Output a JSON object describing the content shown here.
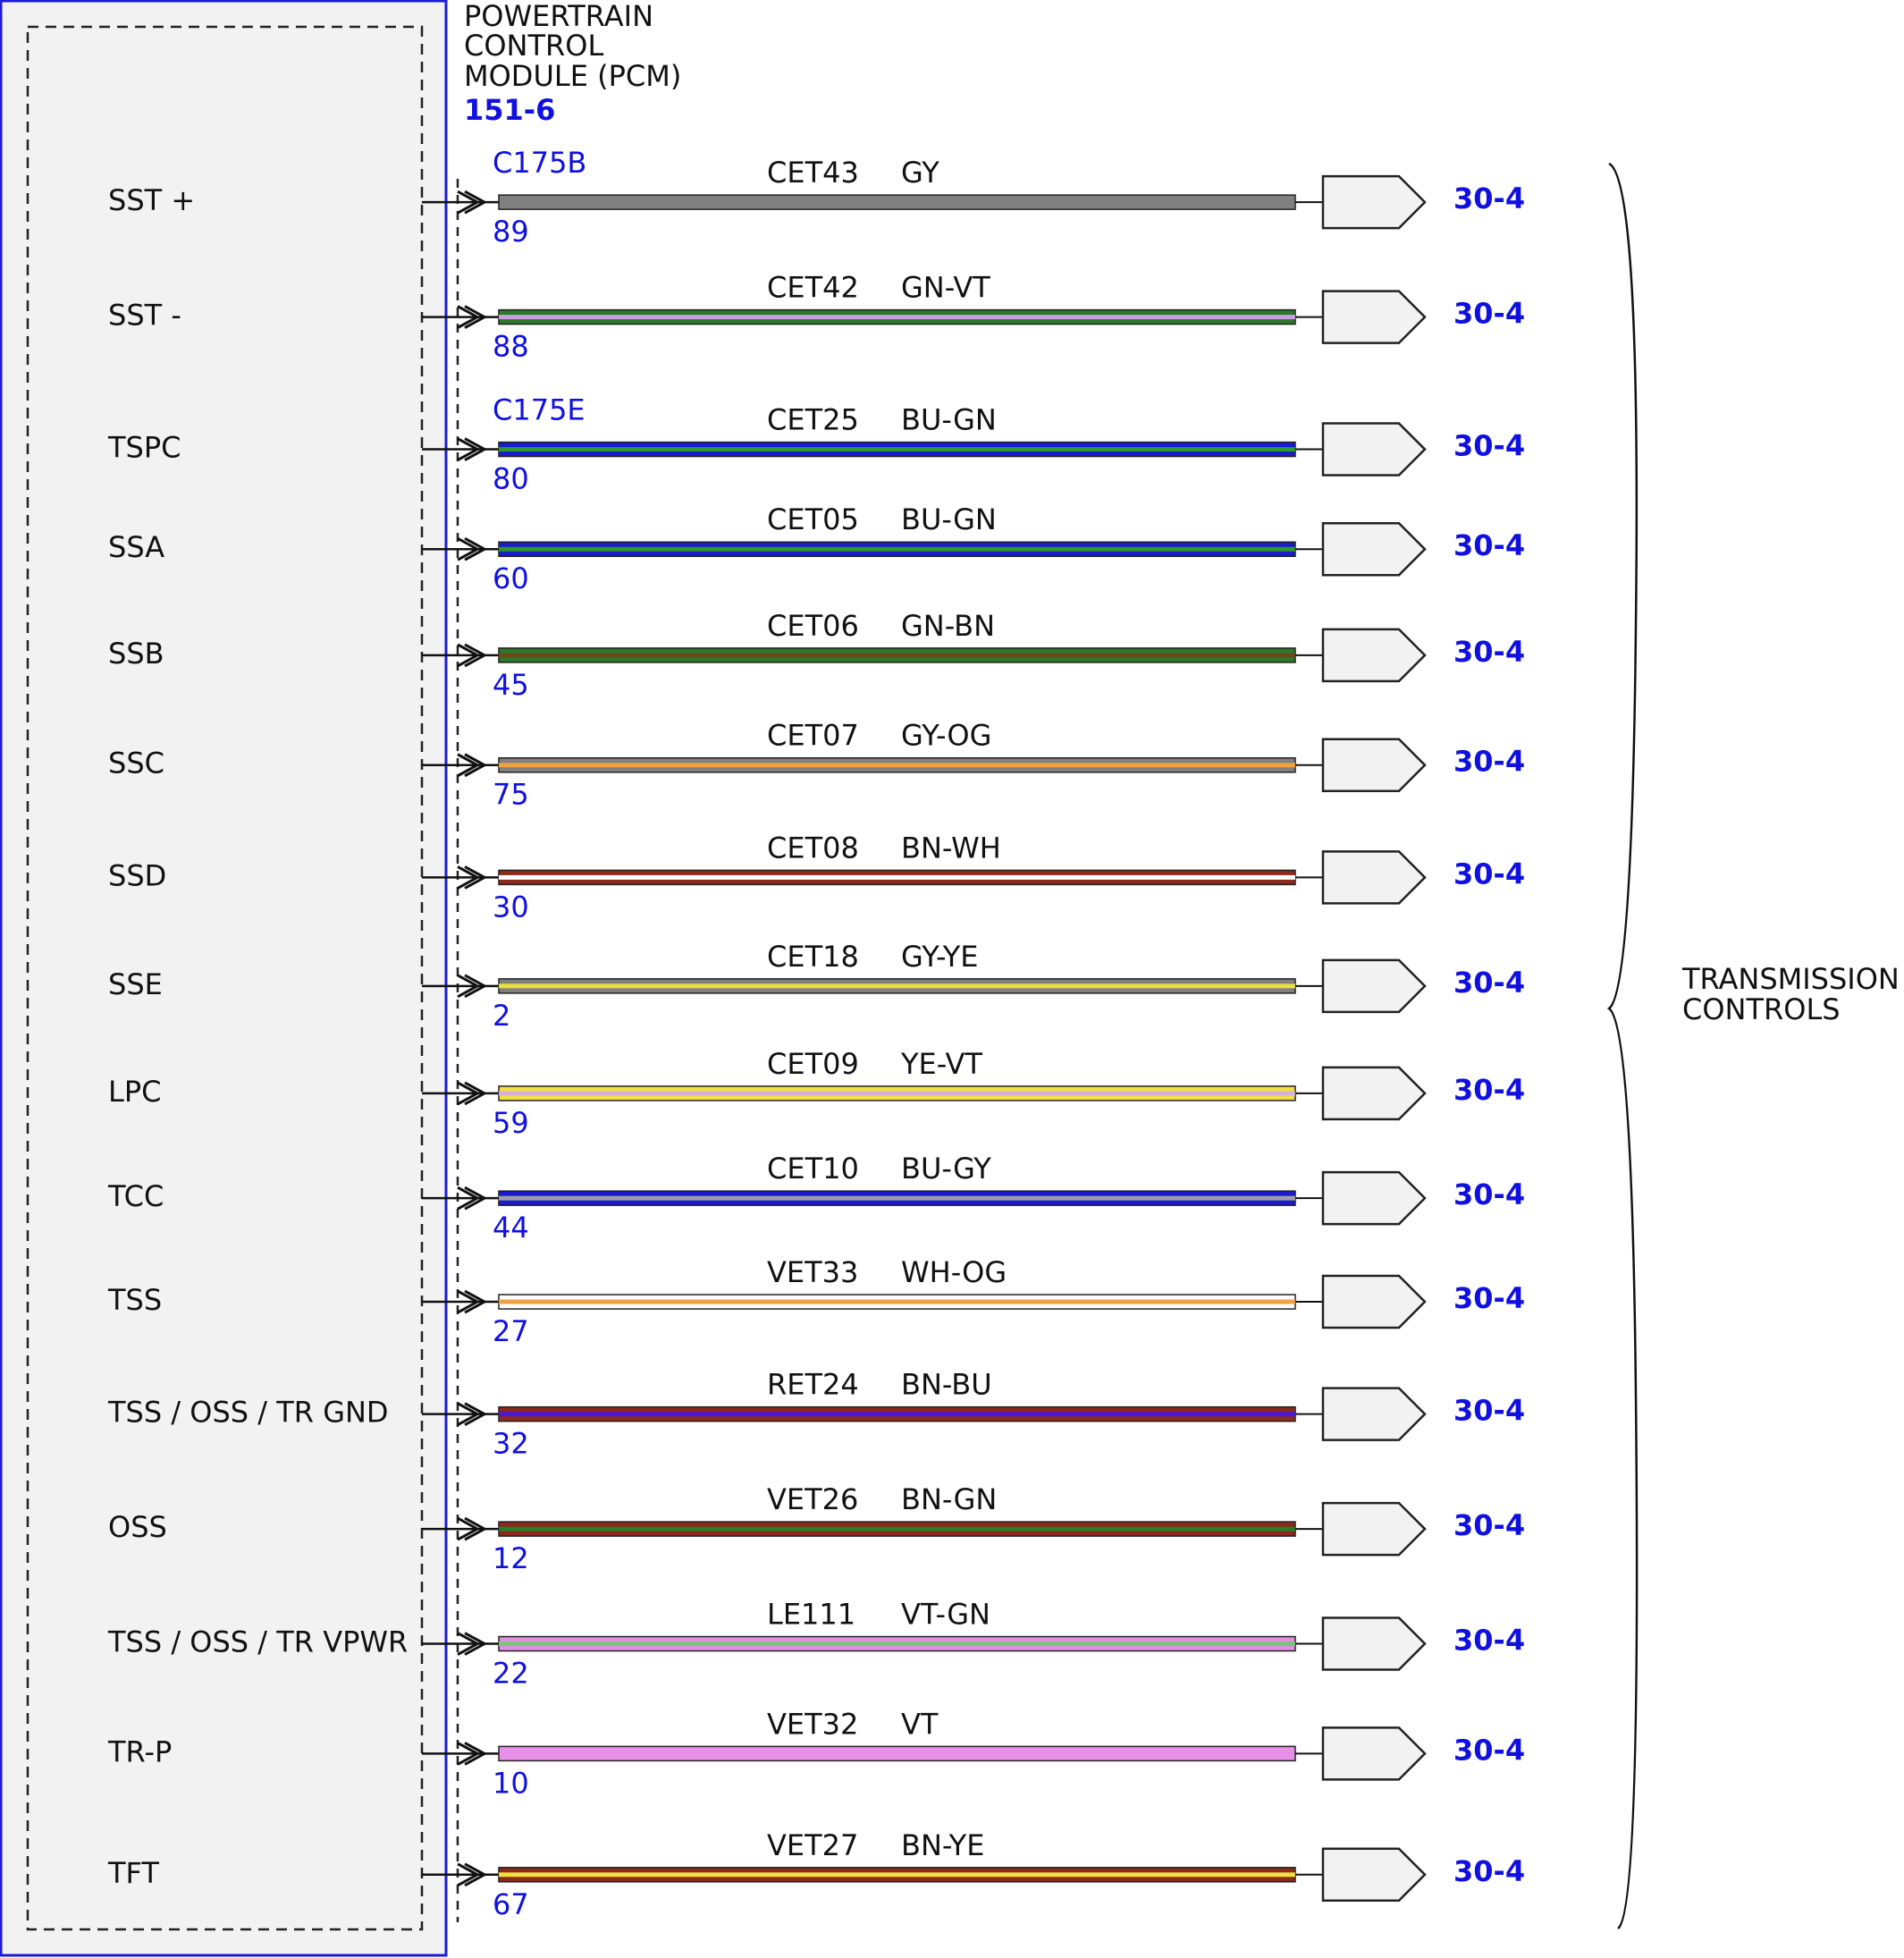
{
  "module": {
    "title_lines": [
      "POWERTRAIN",
      "CONTROL",
      "MODULE (PCM)"
    ],
    "page": "151-6"
  },
  "wires": [
    {
      "signal": "SST +",
      "connector": "C175B",
      "pin": "89",
      "circuit": "CET43",
      "color_code": "GY",
      "destination": "30-4",
      "colors": [
        "#808080"
      ]
    },
    {
      "signal": "SST -",
      "pin": "88",
      "circuit": "CET42",
      "color_code": "GN-VT",
      "destination": "30-4",
      "colors": [
        "#2a7a2a",
        "#c8a0e0"
      ]
    },
    {
      "signal": "TSPC",
      "connector": "C175E",
      "pin": "80",
      "circuit": "CET25",
      "color_code": "BU-GN",
      "destination": "30-4",
      "colors": [
        "#1a1ad0",
        "#2a9a2a"
      ]
    },
    {
      "signal": "SSA",
      "pin": "60",
      "circuit": "CET05",
      "color_code": "BU-GN",
      "destination": "30-4",
      "colors": [
        "#1a1ad0",
        "#2a9a2a"
      ]
    },
    {
      "signal": "SSB",
      "pin": "45",
      "circuit": "CET06",
      "color_code": "GN-BN",
      "destination": "30-4",
      "colors": [
        "#2a7a2a",
        "#6a4a1a"
      ]
    },
    {
      "signal": "SSC",
      "pin": "75",
      "circuit": "CET07",
      "color_code": "GY-OG",
      "destination": "30-4",
      "colors": [
        "#808080",
        "#f0a040"
      ]
    },
    {
      "signal": "SSD",
      "pin": "30",
      "circuit": "CET08",
      "color_code": "BN-WH",
      "destination": "30-4",
      "colors": [
        "#8b2a1a",
        "#ffffff"
      ]
    },
    {
      "signal": "SSE",
      "pin": "2",
      "circuit": "CET18",
      "color_code": "GY-YE",
      "destination": "30-4",
      "colors": [
        "#808080",
        "#e8e040"
      ]
    },
    {
      "signal": "LPC",
      "pin": "59",
      "circuit": "CET09",
      "color_code": "YE-VT",
      "destination": "30-4",
      "colors": [
        "#f0e040",
        "#d8b0e0"
      ]
    },
    {
      "signal": "TCC",
      "pin": "44",
      "circuit": "CET10",
      "color_code": "BU-GY",
      "destination": "30-4",
      "colors": [
        "#1a1ad0",
        "#a0a0a0"
      ]
    },
    {
      "signal": "TSS",
      "pin": "27",
      "circuit": "VET33",
      "color_code": "WH-OG",
      "destination": "30-4",
      "colors": [
        "#ffffff",
        "#f0a040"
      ]
    },
    {
      "signal": "TSS / OSS / TR GND",
      "pin": "32",
      "circuit": "RET24",
      "color_code": "BN-BU",
      "destination": "30-4",
      "colors": [
        "#8b2a1a",
        "#4a1ad0"
      ]
    },
    {
      "signal": "OSS",
      "pin": "12",
      "circuit": "VET26",
      "color_code": "BN-GN",
      "destination": "30-4",
      "colors": [
        "#8b2a1a",
        "#2a7a2a"
      ]
    },
    {
      "signal": "TSS / OSS / TR VPWR",
      "pin": "22",
      "circuit": "LE111",
      "color_code": "VT-GN",
      "destination": "30-4",
      "colors": [
        "#e090e0",
        "#80c080"
      ]
    },
    {
      "signal": "TR-P",
      "pin": "10",
      "circuit": "VET32",
      "color_code": "VT",
      "destination": "30-4",
      "colors": [
        "#e890e8"
      ]
    },
    {
      "signal": "TFT",
      "pin": "67",
      "circuit": "VET27",
      "color_code": "BN-YE",
      "destination": "30-4",
      "colors": [
        "#8b2a1a",
        "#f0e040"
      ]
    }
  ],
  "bracket": {
    "label_lines": [
      "TRANSMISSION",
      "CONTROLS"
    ]
  }
}
